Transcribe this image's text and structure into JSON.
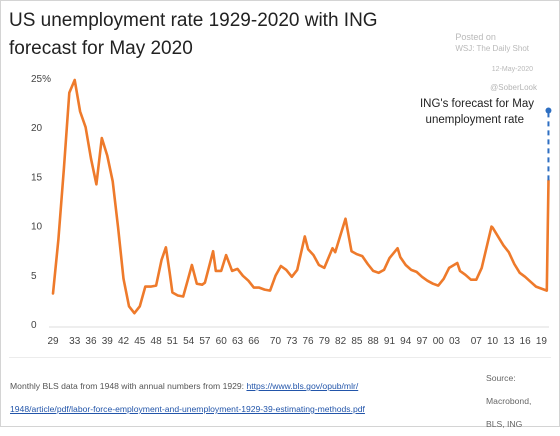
{
  "header": {
    "title": "US unemployment rate 1929-2020 with ING forecast for May 2020",
    "posted_on": "Posted on",
    "posted_by": "WSJ: The Daily Shot",
    "date": "12-May-2020",
    "handle": "@SoberLook"
  },
  "annotation": {
    "line1": "ING's forecast for May",
    "line2": "unemployment rate"
  },
  "footer": {
    "note_prefix": "Monthly BLS data from 1948 with annual numbers from 1929: ",
    "link_part1": "https://www.bls.gov/opub/mlr/",
    "link_part2": "1948/article/pdf/labor-force-employment-and-unemployment-1929-39-estimating-methods.pdf",
    "source_line1": "Source:",
    "source_line2": "Macrobond,",
    "source_line3": "BLS, ING"
  },
  "colors": {
    "series": "#ee7a2b",
    "forecast": "#2e6fc2",
    "axis_text": "#444444",
    "grid": "#eeeeee"
  },
  "chart_data": {
    "type": "line",
    "title": "US unemployment rate 1929-2020 with ING forecast for May 2020",
    "xlabel": "",
    "ylabel": "",
    "xlim": [
      1929,
      2020.4
    ],
    "ylim": [
      0,
      25
    ],
    "yticks": [
      0,
      5,
      10,
      15,
      20,
      25
    ],
    "ytick_labels": [
      "0",
      "5",
      "10",
      "15",
      "20",
      "25%"
    ],
    "xticks": [
      1929,
      1933,
      1936,
      1939,
      1942,
      1945,
      1948,
      1951,
      1954,
      1957,
      1960,
      1963,
      1966,
      1970,
      1973,
      1976,
      1979,
      1982,
      1985,
      1988,
      1991,
      1994,
      1997,
      2000,
      2003,
      2007,
      2010,
      2013,
      2016,
      2019
    ],
    "xtick_labels": [
      "29",
      "33",
      "36",
      "39",
      "42",
      "45",
      "48",
      "51",
      "54",
      "57",
      "60",
      "63",
      "66",
      "70",
      "73",
      "76",
      "79",
      "82",
      "85",
      "88",
      "91",
      "94",
      "97",
      "00",
      "03",
      "07",
      "10",
      "13",
      "16",
      "19"
    ],
    "grid": false,
    "series": [
      {
        "name": "",
        "x": [
          1929,
          1930,
          1931,
          1932,
          1933,
          1934,
          1935,
          1936,
          1937,
          1938,
          1939,
          1940,
          1941,
          1942,
          1943,
          1944,
          1945,
          1946,
          1947,
          1948,
          1949,
          1949.8,
          1950.5,
          1951,
          1952,
          1953,
          1953.8,
          1954.6,
          1955.5,
          1956.5,
          1957,
          1958.5,
          1959,
          1960,
          1960.9,
          1962,
          1963,
          1964,
          1965,
          1966,
          1967,
          1968,
          1969,
          1970,
          1971,
          1972,
          1973,
          1974,
          1975.4,
          1976,
          1977,
          1978,
          1979,
          1980.5,
          1981,
          1982.9,
          1984,
          1985,
          1986,
          1987,
          1988,
          1989,
          1990,
          1991,
          1992.5,
          1993,
          1994,
          1995,
          1996,
          1997,
          1998,
          1999,
          2000,
          2001,
          2002,
          2003.5,
          2004,
          2005,
          2006,
          2007,
          2008,
          2009.8,
          2010,
          2011,
          2012,
          2013,
          2014,
          2015,
          2016,
          2017,
          2018,
          2019,
          2020,
          2020.3
        ],
        "values": [
          3.2,
          8.7,
          15.9,
          23.6,
          24.9,
          21.7,
          20.1,
          16.9,
          14.3,
          19.0,
          17.2,
          14.6,
          9.9,
          4.7,
          1.9,
          1.2,
          1.9,
          3.9,
          3.9,
          4.0,
          6.6,
          7.9,
          5.3,
          3.3,
          3.0,
          2.9,
          4.5,
          6.1,
          4.2,
          4.1,
          4.3,
          7.5,
          5.5,
          5.5,
          7.1,
          5.5,
          5.7,
          5.0,
          4.5,
          3.8,
          3.8,
          3.6,
          3.5,
          5.0,
          6.0,
          5.6,
          4.9,
          5.6,
          9.0,
          7.7,
          7.1,
          6.1,
          5.8,
          7.8,
          7.4,
          10.8,
          7.5,
          7.2,
          7.0,
          6.2,
          5.5,
          5.3,
          5.6,
          6.8,
          7.8,
          6.9,
          6.1,
          5.6,
          5.4,
          4.9,
          4.5,
          4.2,
          4.0,
          4.7,
          5.8,
          6.3,
          5.5,
          5.1,
          4.6,
          4.6,
          5.8,
          10.0,
          9.9,
          9.0,
          8.1,
          7.4,
          6.2,
          5.3,
          4.9,
          4.4,
          3.9,
          3.7,
          3.5,
          14.7
        ]
      },
      {
        "name": "ING's forecast for May unemployment rate",
        "x": [
          2020.3,
          2020.3
        ],
        "values": [
          14.7,
          21.8
        ]
      }
    ]
  }
}
